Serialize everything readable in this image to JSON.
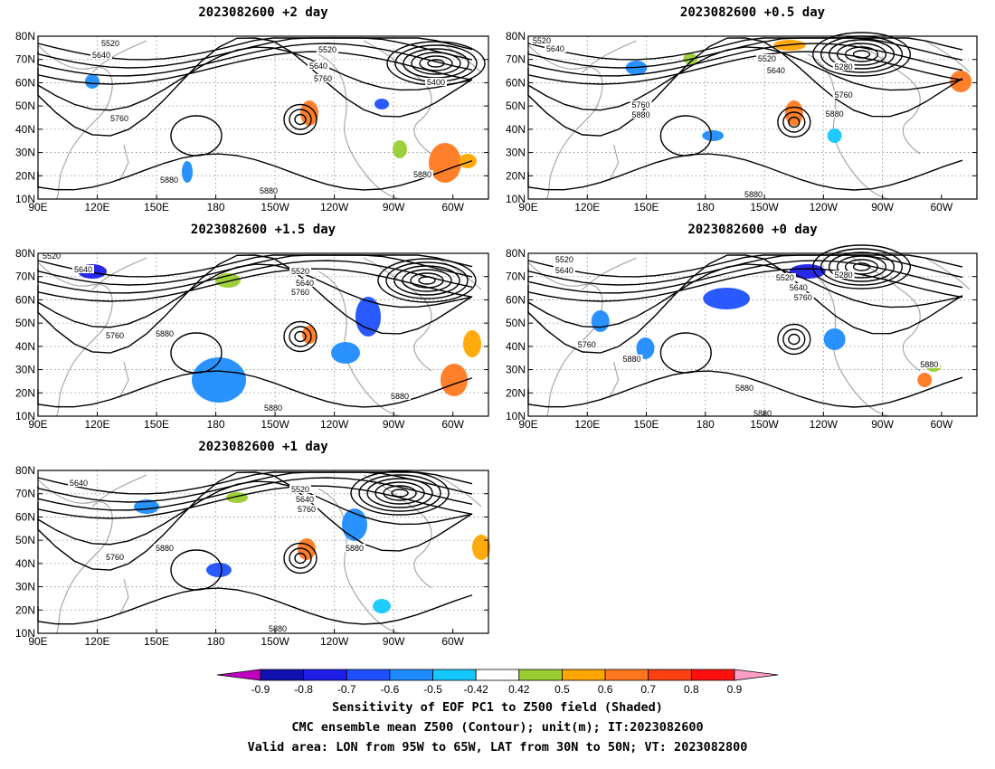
{
  "panels": [
    {
      "id": "p2",
      "title": "2023082600 +2 day"
    },
    {
      "id": "p05",
      "title": "2023082600 +0.5 day"
    },
    {
      "id": "p15",
      "title": "2023082600 +1.5 day"
    },
    {
      "id": "p0",
      "title": "2023082600 +0 day"
    },
    {
      "id": "p1",
      "title": "2023082600 +1 day"
    }
  ],
  "axes": {
    "lat_labels": [
      "80N",
      "70N",
      "60N",
      "50N",
      "40N",
      "30N",
      "20N",
      "10N"
    ],
    "lon_labels": [
      "90E",
      "120E",
      "150E",
      "180",
      "150W",
      "120W",
      "90W",
      "60W"
    ]
  },
  "contour_levels": [
    "5280",
    "5400",
    "5520",
    "5640",
    "5760",
    "5880"
  ],
  "colorbar": {
    "ticks": [
      "-0.9",
      "-0.8",
      "-0.7",
      "-0.6",
      "-0.5",
      "-0.42",
      "0.42",
      "0.5",
      "0.6",
      "0.7",
      "0.8",
      "0.9"
    ],
    "colors": [
      "#c000c0",
      "#1010b0",
      "#1e1ee8",
      "#1e50ff",
      "#1e8cff",
      "#14c8ff",
      "#ffffff",
      "#9acd32",
      "#ffa500",
      "#ff7820",
      "#ff4010",
      "#ff1010",
      "#ff9ec8"
    ]
  },
  "footer": {
    "line1": "Sensitivity of EOF PC1 to Z500 field (Shaded)",
    "line2": "CMC ensemble mean Z500 (Contour); unit(m); IT:2023082600",
    "line3": "Valid area: LON from 95W to 65W, LAT from 30N to 50N; VT: 2023082800"
  }
}
